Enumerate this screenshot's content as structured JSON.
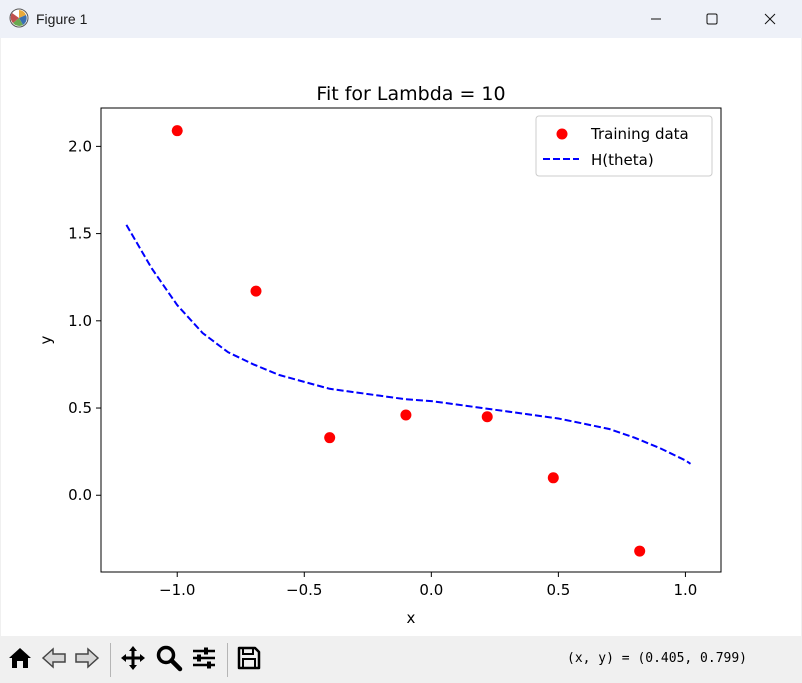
{
  "window": {
    "title": "Figure 1",
    "icon": "matplotlib-icon",
    "controls": [
      "minimize-icon",
      "maximize-icon",
      "close-icon"
    ]
  },
  "chart_data": {
    "type": "scatter",
    "title": "Fit for Lambda = 10",
    "xlabel": "x",
    "ylabel": "y",
    "xlim": [
      -1.3,
      1.14
    ],
    "ylim": [
      -0.44,
      2.22
    ],
    "xticks": [
      -1.0,
      -0.5,
      0.0,
      0.5,
      1.0
    ],
    "xtick_labels": [
      "−1.0",
      "−0.5",
      "0.0",
      "0.5",
      "1.0"
    ],
    "yticks": [
      0.0,
      0.5,
      1.0,
      1.5,
      2.0
    ],
    "ytick_labels": [
      "0.0",
      "0.5",
      "1.0",
      "1.5",
      "2.0"
    ],
    "grid": false,
    "legend_position": "top-right",
    "series": [
      {
        "name": "Training data",
        "kind": "scatter",
        "color": "#ff0000",
        "x": [
          -1.0,
          -0.69,
          -0.4,
          -0.1,
          0.22,
          0.48,
          0.82
        ],
        "y": [
          2.09,
          1.17,
          0.33,
          0.46,
          0.45,
          0.1,
          -0.32
        ]
      },
      {
        "name": "H(theta)",
        "kind": "line",
        "style": "dashed",
        "color": "#0000ff",
        "x": [
          -1.2,
          -1.1,
          -1.0,
          -0.9,
          -0.8,
          -0.7,
          -0.6,
          -0.5,
          -0.4,
          -0.3,
          -0.2,
          -0.1,
          0.0,
          0.1,
          0.2,
          0.3,
          0.4,
          0.5,
          0.6,
          0.7,
          0.8,
          0.9,
          1.0,
          1.02
        ],
        "y": [
          1.55,
          1.3,
          1.09,
          0.93,
          0.82,
          0.75,
          0.69,
          0.65,
          0.61,
          0.59,
          0.57,
          0.55,
          0.54,
          0.52,
          0.5,
          0.48,
          0.46,
          0.44,
          0.41,
          0.38,
          0.33,
          0.27,
          0.2,
          0.18
        ]
      }
    ]
  },
  "toolbar": {
    "buttons": [
      "home-icon",
      "back-icon",
      "forward-icon",
      "pan-icon",
      "zoom-icon",
      "configure-subplots-icon",
      "save-icon"
    ],
    "coords_text": "(x, y) = (0.405, 0.799)"
  }
}
